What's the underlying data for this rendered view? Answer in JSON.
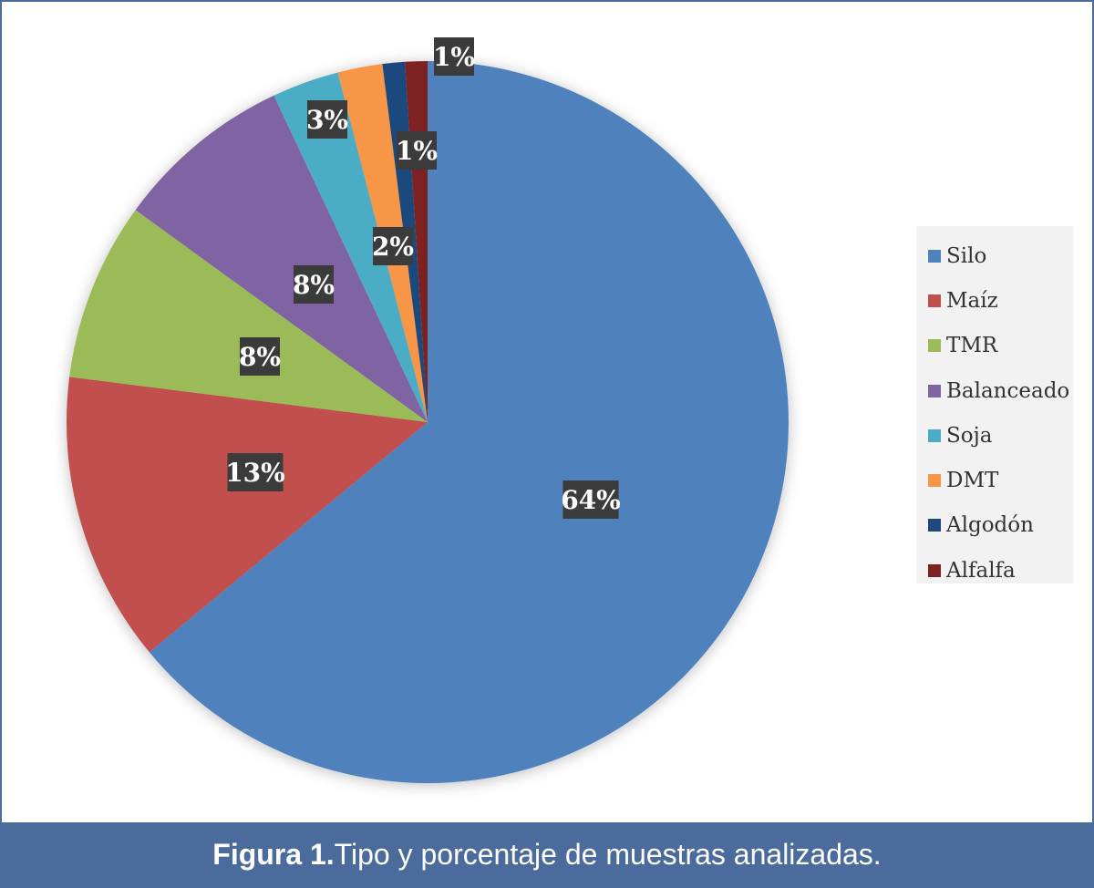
{
  "chart_data": {
    "type": "pie",
    "categories": [
      "Silo",
      "Maíz",
      "TMR",
      "Balanceado",
      "Soja",
      "DMT",
      "Algodón",
      "Alfalfa"
    ],
    "values": [
      64,
      13,
      8,
      8,
      3,
      2,
      1,
      1
    ],
    "data_labels": [
      "64%",
      "13%",
      "8%",
      "8%",
      "3%",
      "2%",
      "1%",
      "1%"
    ],
    "colors": [
      "#4f81bd",
      "#c0504d",
      "#9bbb59",
      "#8064a2",
      "#4bacc6",
      "#f79646",
      "#1f497d",
      "#7b2323"
    ],
    "start_angle_deg": 0,
    "direction": "clockwise",
    "legend_position": "right",
    "title": ""
  },
  "caption": {
    "label": "Figura 1.",
    "text": " Tipo y porcentaje de muestras analizadas."
  }
}
